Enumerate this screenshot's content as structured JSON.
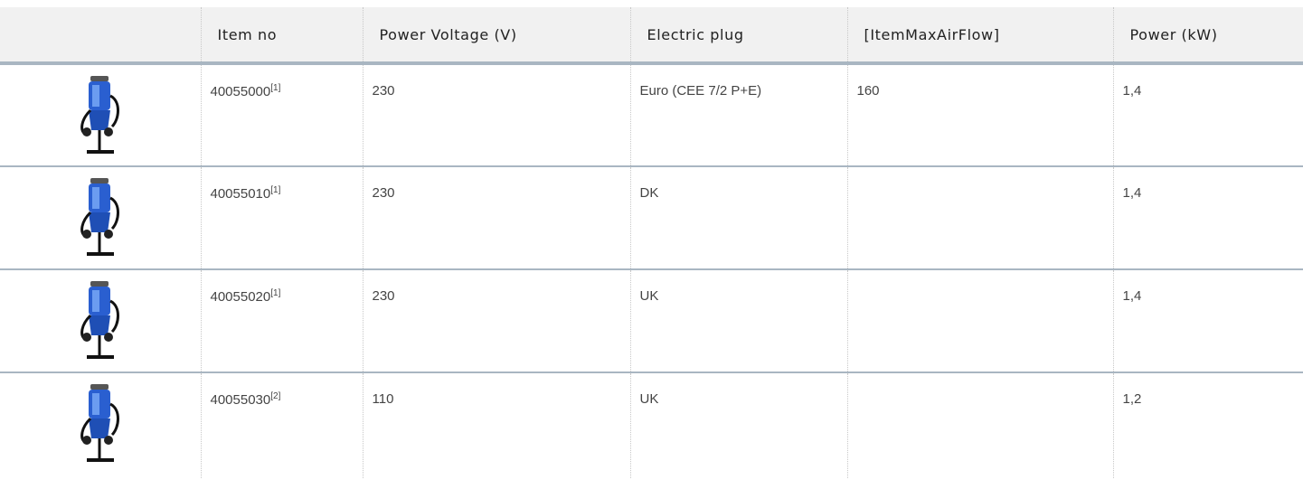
{
  "header": {
    "columns": [
      "Item no",
      "Power Voltage (V)",
      "Electric plug",
      "[ItemMaxAirFlow]",
      "Power (kW)"
    ]
  },
  "rows": [
    {
      "item_no": "40055000",
      "note": "[1]",
      "voltage": "230",
      "plug": "Euro (CEE 7/2 P+E)",
      "airflow": "160",
      "power": "1,4"
    },
    {
      "item_no": "40055010",
      "note": "[1]",
      "voltage": "230",
      "plug": "DK",
      "power": "1,4"
    },
    {
      "item_no": "40055020",
      "note": "[1]",
      "voltage": "230",
      "plug": "UK",
      "power": "1,4"
    },
    {
      "item_no": "40055030",
      "note": "[2]",
      "voltage": "110",
      "plug": "UK",
      "power": "1,2"
    }
  ]
}
